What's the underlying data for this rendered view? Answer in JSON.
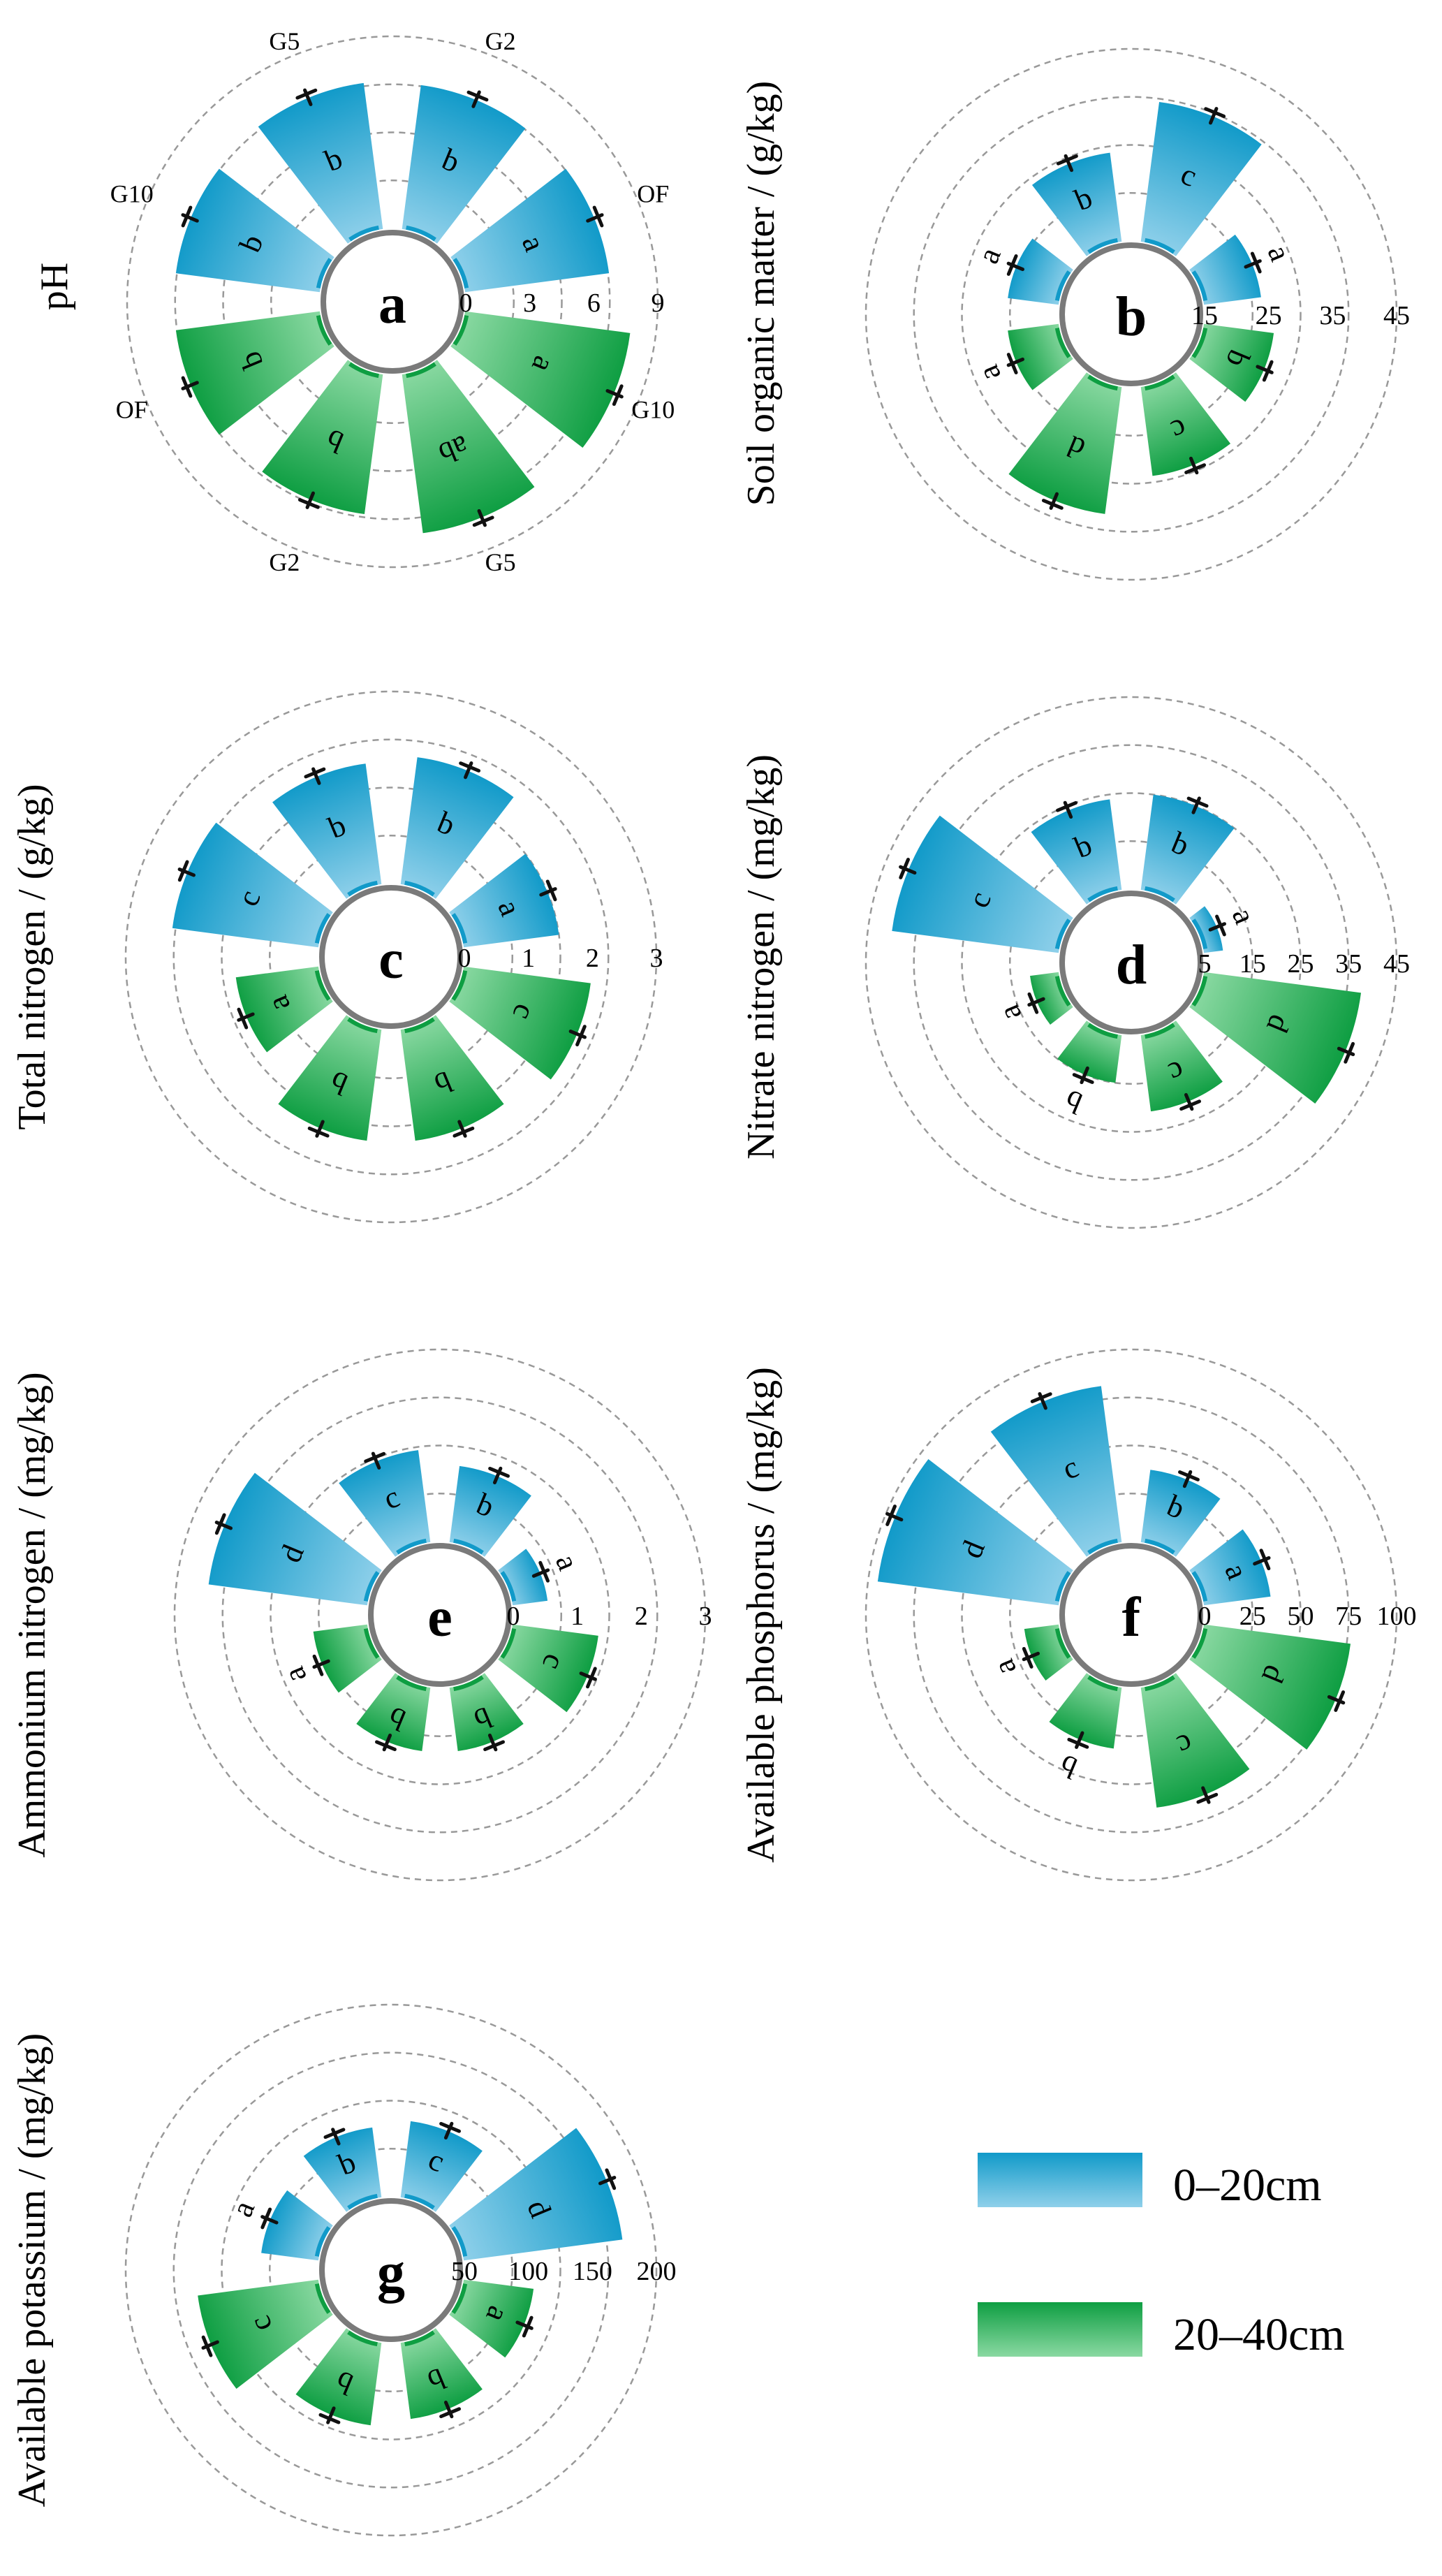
{
  "colors": {
    "topsoil": "#119ac9",
    "subsoil": "#0e9e42",
    "topsoil_light": "#8fd0ea",
    "subsoil_light": "#8ad9a2"
  },
  "legend": [
    {
      "label": "0–20cm",
      "color": "#119ac9"
    },
    {
      "label": "20–40cm",
      "color": "#0e9e42"
    }
  ],
  "chart_data": [
    {
      "type": "bar",
      "layout": "radial",
      "panel": "a",
      "ylabel": "pH",
      "ticks": [
        0,
        3,
        6,
        9
      ],
      "categories_top": [
        "OF",
        "G2",
        "G5",
        "G10"
      ],
      "categories_bottom": [
        "G10",
        "G5",
        "G2",
        "OF"
      ],
      "series": [
        {
          "name": "0–20cm",
          "values": [
            6.8,
            6.8,
            6.9,
            6.8
          ],
          "letters": [
            "a",
            "b",
            "b",
            "b"
          ]
        },
        {
          "name": "20–40cm",
          "values": [
            7.8,
            7.5,
            6.6,
            6.8
          ],
          "letters": [
            "a",
            "ab",
            "b",
            "b"
          ]
        }
      ]
    },
    {
      "type": "bar",
      "layout": "radial",
      "panel": "b",
      "ylabel": "Soil organic matter / (g/kg)",
      "ticks": [
        15,
        25,
        35,
        45
      ],
      "series": [
        {
          "name": "0–20cm",
          "values": [
            24,
            37,
            29,
            23
          ],
          "letters": [
            "a",
            "c",
            "b",
            "a"
          ]
        },
        {
          "name": "20–40cm",
          "values": [
            26,
            29,
            35,
            23
          ],
          "letters": [
            "b",
            "c",
            "d",
            "a"
          ]
        }
      ]
    },
    {
      "type": "bar",
      "layout": "radial",
      "panel": "c",
      "ylabel": "Total nitrogen / (g/kg)",
      "ticks": [
        0,
        1,
        2,
        3
      ],
      "series": [
        {
          "name": "0–20cm",
          "values": [
            1.5,
            2.0,
            1.9,
            2.3
          ],
          "letters": [
            "a",
            "b",
            "b",
            "c"
          ]
        },
        {
          "name": "20–40cm",
          "values": [
            2.0,
            1.75,
            1.75,
            1.3
          ],
          "letters": [
            "c",
            "b",
            "b",
            "a"
          ]
        }
      ]
    },
    {
      "type": "bar",
      "layout": "radial",
      "panel": "d",
      "ylabel": "Nitrate nitrogen / (mg/kg)",
      "ticks": [
        5,
        15,
        25,
        35,
        45
      ],
      "series": [
        {
          "name": "0–20cm",
          "values": [
            9,
            25,
            24,
            40
          ],
          "letters": [
            "a",
            "b",
            "b",
            "c"
          ]
        },
        {
          "name": "20–40cm",
          "values": [
            38,
            21,
            15,
            11
          ],
          "letters": [
            "d",
            "c",
            "b",
            "a"
          ]
        }
      ]
    },
    {
      "type": "bar",
      "layout": "radial",
      "panel": "e",
      "ylabel": "Ammonium nitrogen / (mg/kg)",
      "ticks": [
        0,
        1,
        2,
        3
      ],
      "series": [
        {
          "name": "0–20cm",
          "values": [
            0.55,
            1.2,
            1.45,
            2.5
          ],
          "letters": [
            "a",
            "b",
            "c",
            "d"
          ]
        },
        {
          "name": "20–40cm",
          "values": [
            1.35,
            1.0,
            1.0,
            0.85
          ],
          "letters": [
            "c",
            "b",
            "b",
            "a"
          ]
        }
      ]
    },
    {
      "type": "bar",
      "layout": "radial",
      "panel": "f",
      "ylabel": "Available phosphorus / (mg/kg)",
      "ticks": [
        0,
        25,
        50,
        75,
        100
      ],
      "series": [
        {
          "name": "0–20cm",
          "values": [
            35,
            38,
            82,
            95
          ],
          "letters": [
            "a",
            "b",
            "c",
            "d"
          ]
        },
        {
          "name": "20–40cm",
          "values": [
            77,
            63,
            32,
            18
          ],
          "letters": [
            "d",
            "c",
            "b",
            "a"
          ]
        }
      ]
    },
    {
      "type": "bar",
      "layout": "radial",
      "panel": "g",
      "ylabel": "Available potassium / (mg/kg)",
      "ticks": [
        50,
        100,
        150,
        200
      ],
      "series": [
        {
          "name": "0–20cm",
          "values": [
            175,
            110,
            105,
            95
          ],
          "letters": [
            "d",
            "c",
            "b",
            "a"
          ]
        },
        {
          "name": "20–40cm",
          "values": [
            105,
            110,
            115,
            145
          ],
          "letters": [
            "a",
            "b",
            "b",
            "c"
          ]
        }
      ]
    }
  ]
}
